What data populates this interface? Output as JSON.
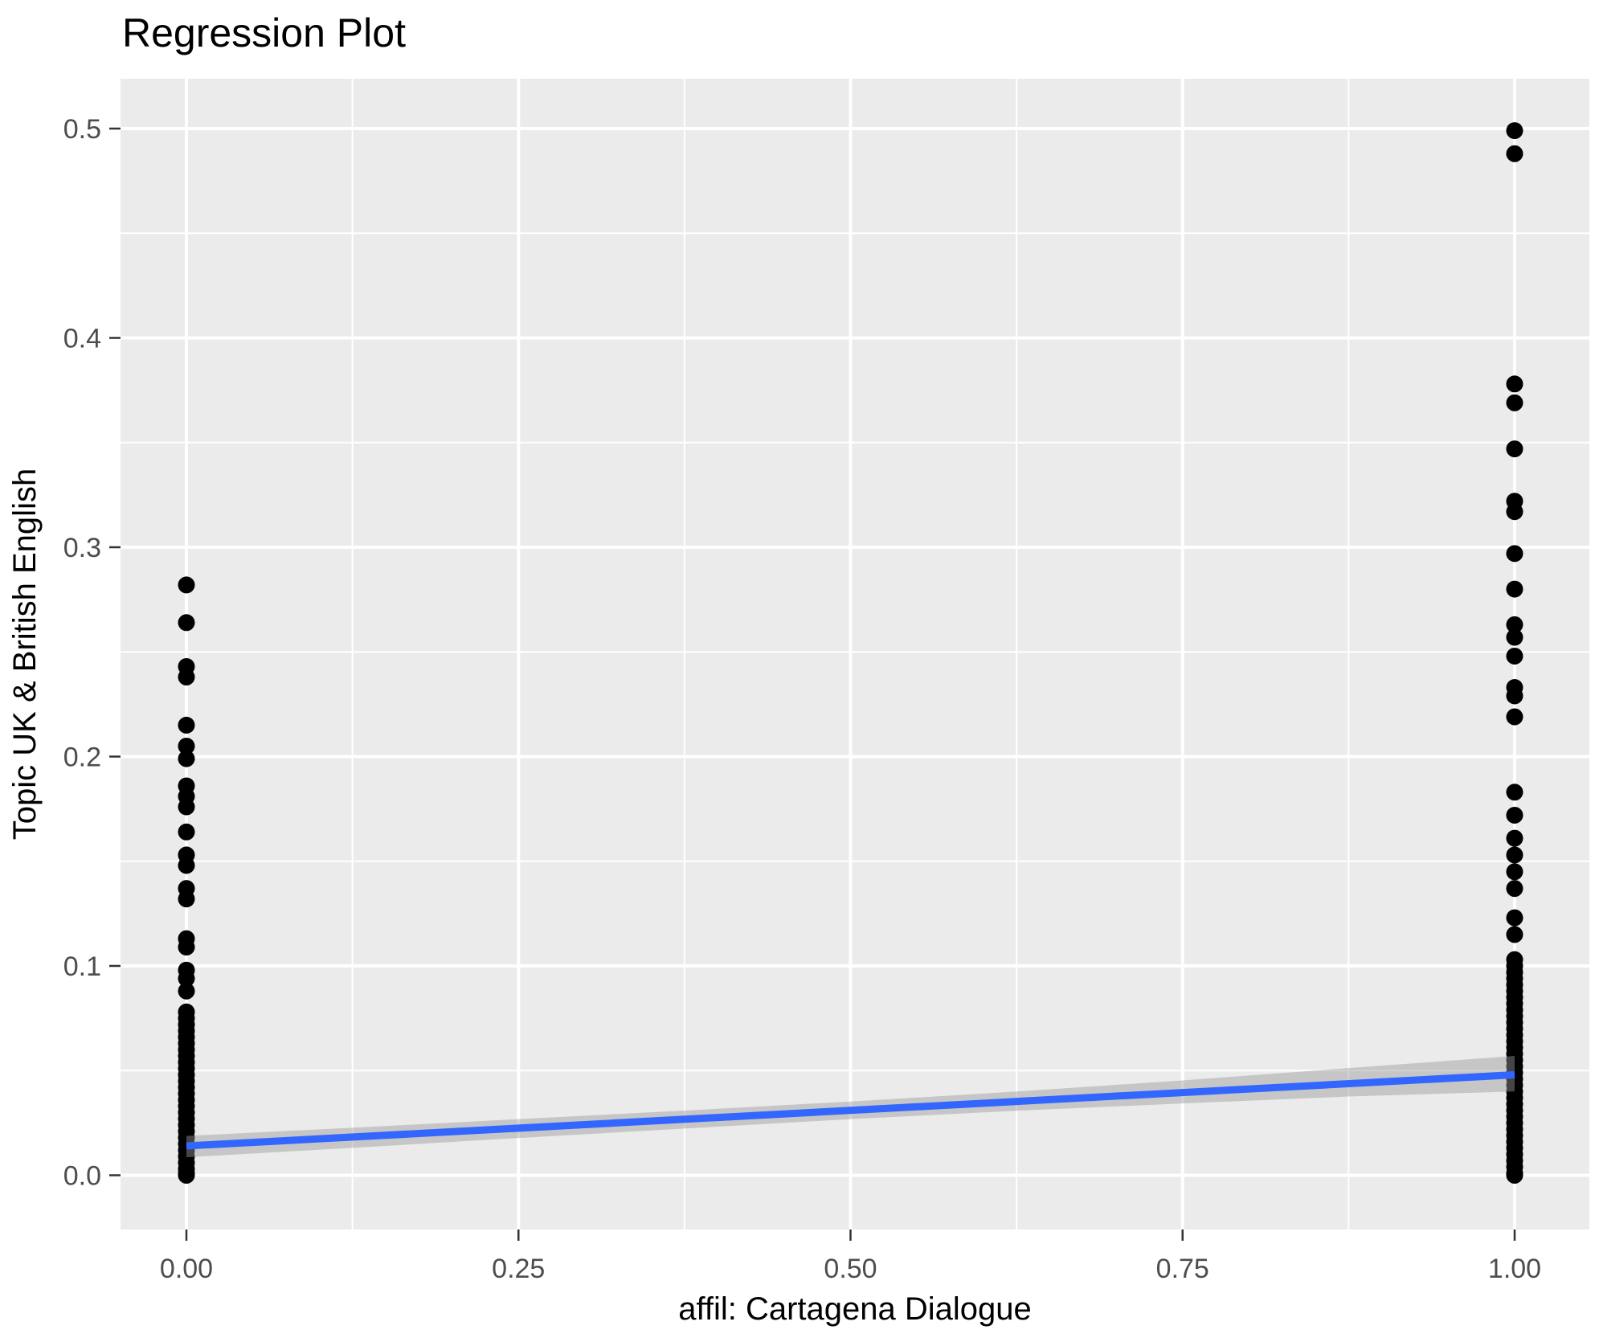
{
  "title": "Regression Plot",
  "chart_data": {
    "type": "scatter",
    "title": "Regression Plot",
    "xlabel": "affil: Cartagena Dialogue",
    "ylabel": "Topic UK & British English",
    "x_tick_labels": [
      "0.00",
      "0.25",
      "0.50",
      "0.75",
      "1.00"
    ],
    "x_tick_values": [
      0,
      0.25,
      0.5,
      0.75,
      1
    ],
    "y_tick_labels": [
      "0.0",
      "0.1",
      "0.2",
      "0.3",
      "0.4",
      "0.5"
    ],
    "y_tick_values": [
      0,
      0.1,
      0.2,
      0.3,
      0.4,
      0.5
    ],
    "x_minor_ticks": [
      0.125,
      0.375,
      0.625,
      0.875
    ],
    "y_minor_ticks": [
      0.05,
      0.15,
      0.25,
      0.35,
      0.45
    ],
    "xlim": [
      -0.0496,
      1.0563
    ],
    "ylim": [
      -0.0259,
      0.5238
    ],
    "grid": true,
    "legend_position": "none",
    "series": [
      {
        "name": "affil = 0",
        "x": 0,
        "values": [
          0.282,
          0.264,
          0.243,
          0.238,
          0.215,
          0.205,
          0.199,
          0.186,
          0.181,
          0.176,
          0.164,
          0.153,
          0.148,
          0.137,
          0.132,
          0.113,
          0.109,
          0.098,
          0.094,
          0.088,
          0.078,
          0.075,
          0.072,
          0.069,
          0.066,
          0.063,
          0.06,
          0.057,
          0.054,
          0.051,
          0.048,
          0.045,
          0.042,
          0.039,
          0.036,
          0.033,
          0.03,
          0.027,
          0.024,
          0.021,
          0.018,
          0.015,
          0.012,
          0.009,
          0.006,
          0.003,
          0.001,
          0.0
        ]
      },
      {
        "name": "affil = 1",
        "x": 1,
        "values": [
          0.499,
          0.488,
          0.378,
          0.369,
          0.347,
          0.322,
          0.317,
          0.297,
          0.28,
          0.263,
          0.257,
          0.248,
          0.233,
          0.229,
          0.219,
          0.183,
          0.172,
          0.161,
          0.153,
          0.145,
          0.137,
          0.123,
          0.115,
          0.103,
          0.1,
          0.097,
          0.094,
          0.091,
          0.088,
          0.085,
          0.082,
          0.079,
          0.076,
          0.073,
          0.07,
          0.067,
          0.064,
          0.061,
          0.058,
          0.055,
          0.052,
          0.049,
          0.046,
          0.043,
          0.04,
          0.037,
          0.034,
          0.031,
          0.028,
          0.025,
          0.022,
          0.019,
          0.016,
          0.013,
          0.01,
          0.007,
          0.004,
          0.001,
          0.0
        ]
      }
    ],
    "regression_line": {
      "x": [
        0,
        1
      ],
      "y": [
        0.014,
        0.048
      ]
    },
    "confidence_band": {
      "x": [
        0,
        0.125,
        0.25,
        0.375,
        0.5,
        0.625,
        0.75,
        0.875,
        1
      ],
      "upper": [
        0.0188,
        0.0227,
        0.0268,
        0.0309,
        0.0352,
        0.04,
        0.0453,
        0.0512,
        0.057
      ],
      "lower": [
        0.0086,
        0.0131,
        0.0178,
        0.0223,
        0.0268,
        0.0308,
        0.0343,
        0.0376,
        0.04
      ]
    },
    "colors": {
      "panel_bg": "#EBEBEB",
      "grid": "#FFFFFF",
      "point": "#000000",
      "line": "#3366FF",
      "band": "#999999",
      "tick_label": "#4D4D4D",
      "axis_tick": "#333333",
      "title": "#000000"
    }
  }
}
